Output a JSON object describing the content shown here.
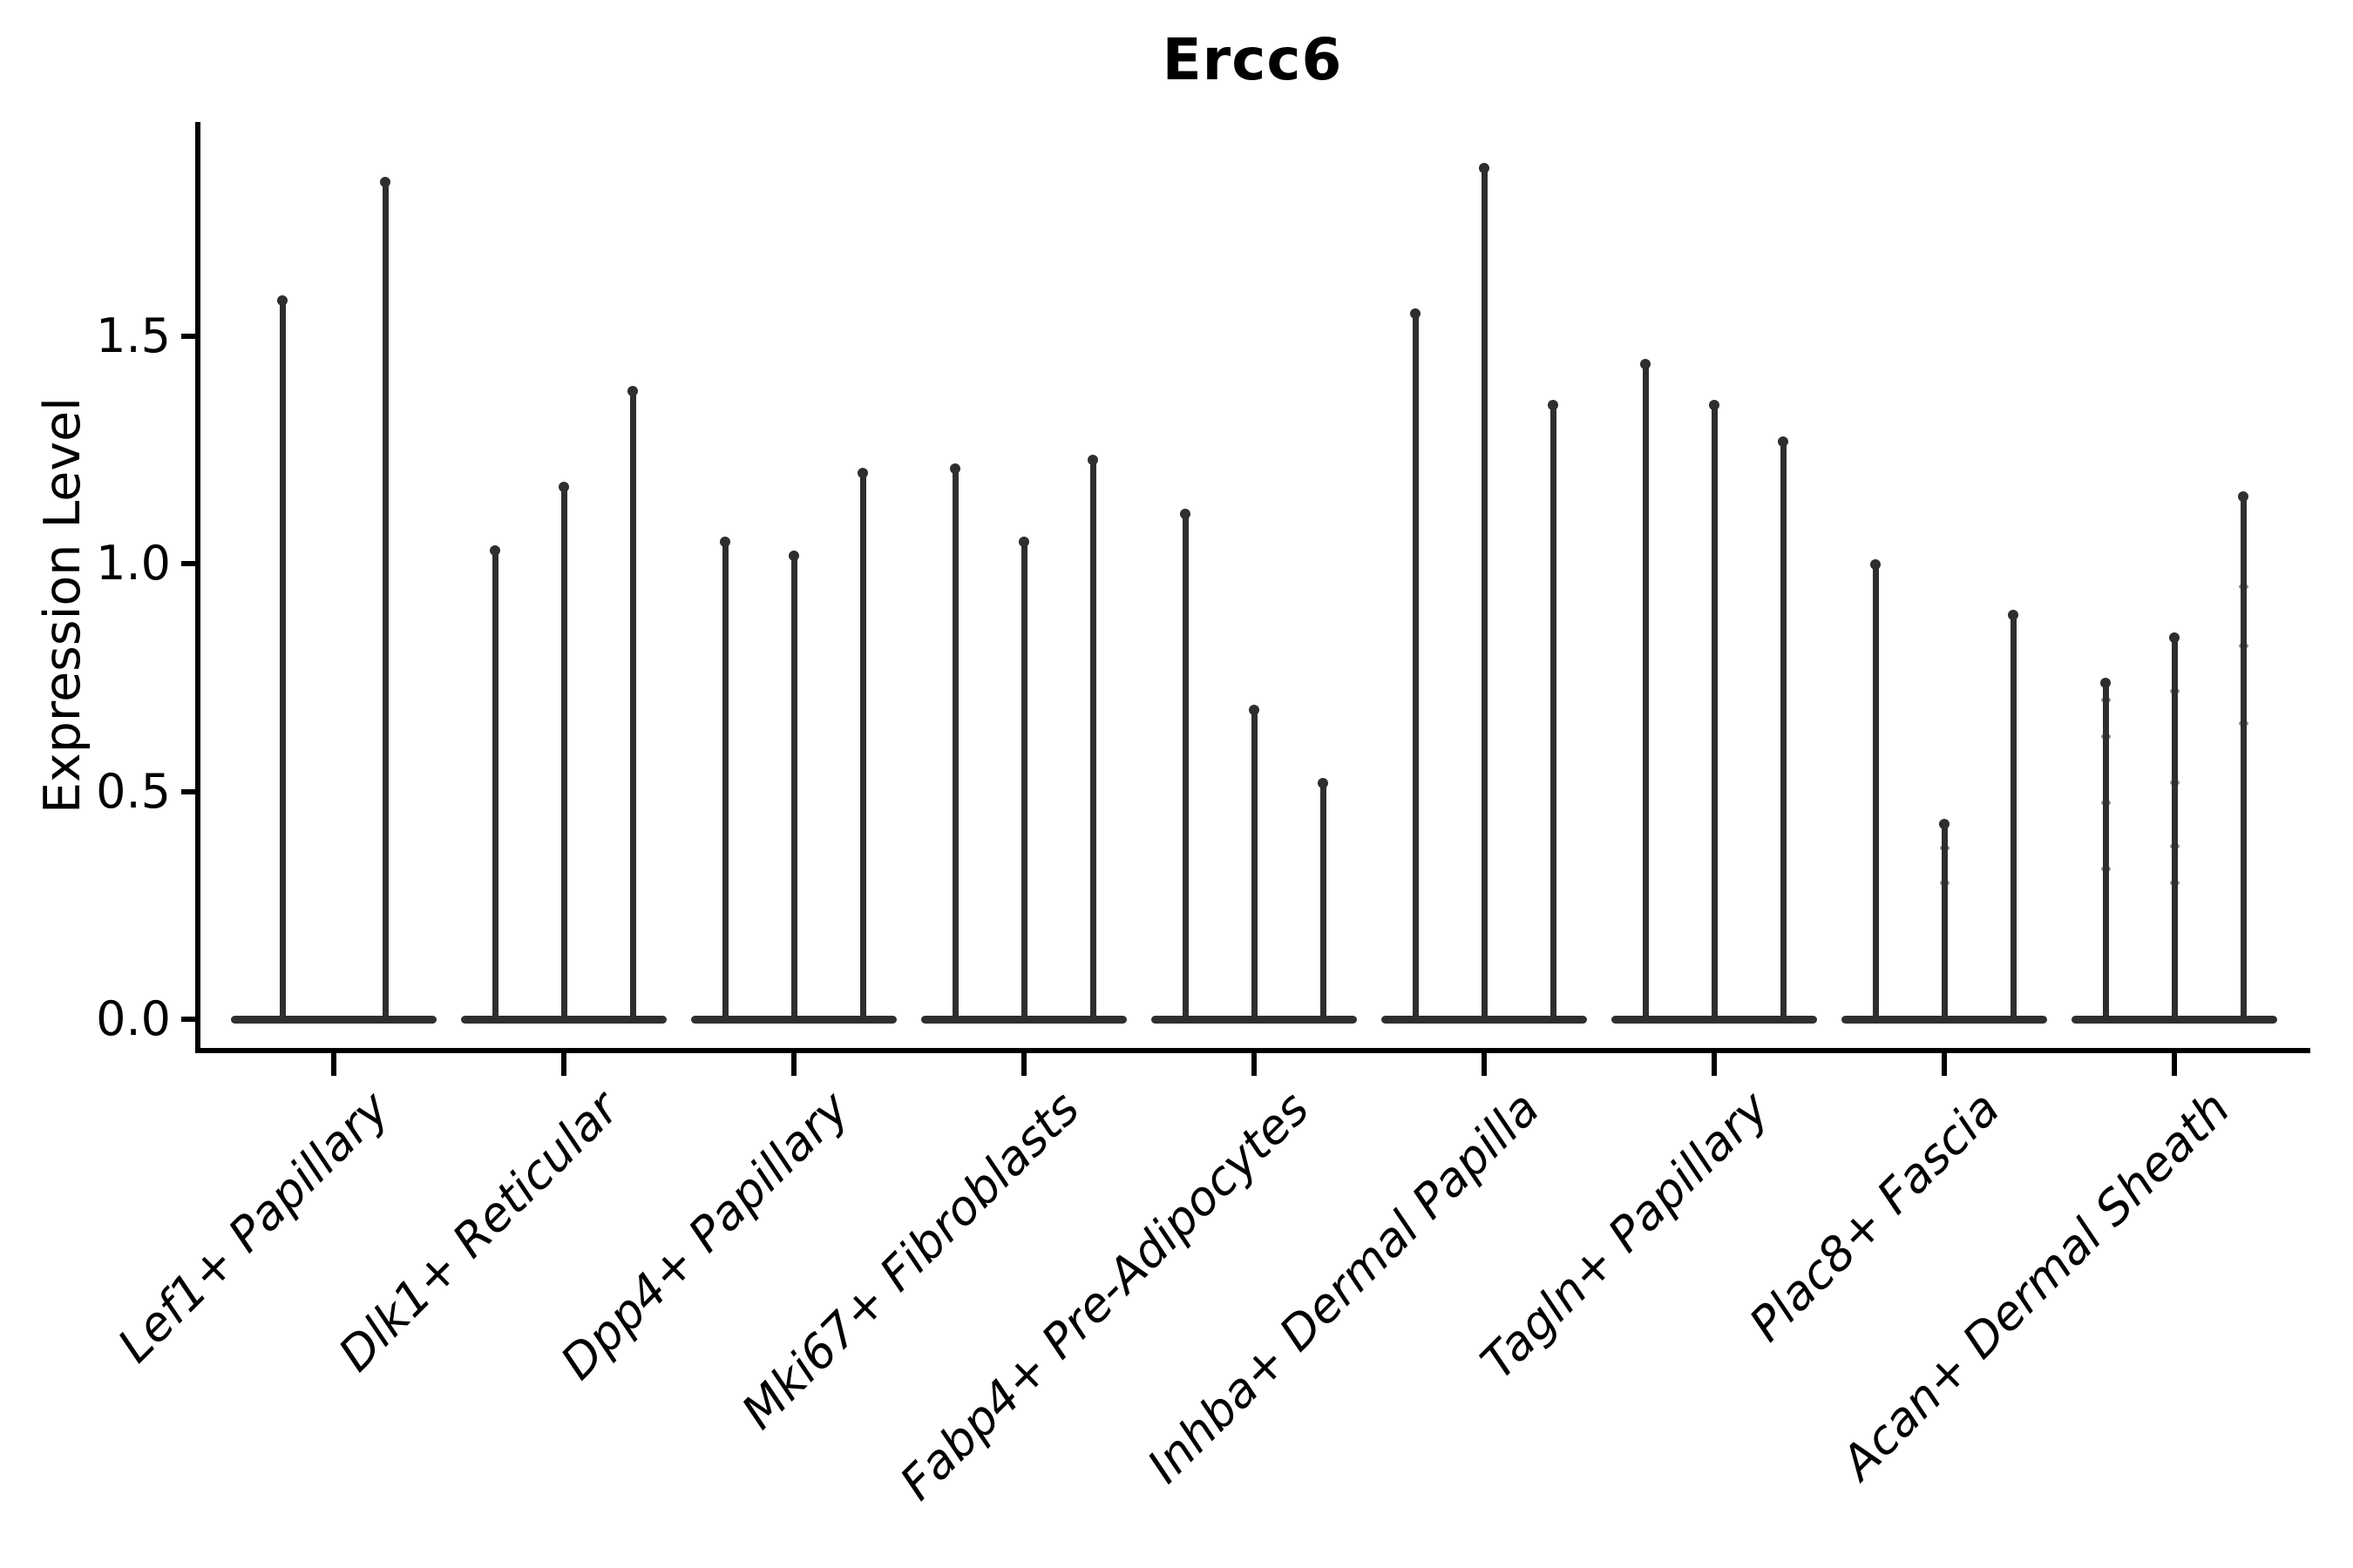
{
  "title": "Ercc6",
  "y_axis": {
    "label": "Expression Level",
    "ticks": [
      "0.0",
      "0.5",
      "1.0",
      "1.5"
    ]
  },
  "colors": {
    "violin": "#2e2e2e",
    "axis": "#000000",
    "text": "#000000",
    "background": "#ffffff"
  },
  "chart_data": {
    "type": "violin",
    "title": "Ercc6",
    "xlabel": "",
    "ylabel": "Expression Level",
    "ylim": [
      -0.075,
      1.97
    ],
    "yticks": [
      0.0,
      0.5,
      1.0,
      1.5
    ],
    "ytick_labels": [
      "0.0",
      "0.5",
      "1.0",
      "1.5"
    ],
    "grid": false,
    "legend": null,
    "style_note": "zero-inflated violins: wide flat base at 0 with a thin density spike rising to the maximum value",
    "categories": [
      "Lef1+ Papillary",
      "Dlk1+ Reticular",
      "Dpp4+ Papillary",
      "Mki67+ Fibroblasts",
      "Fabp4+ Pre-Adipocytes",
      "Inhba+ Dermal Papilla",
      "Tagln+ Papillary",
      "Plac8+ Fascia",
      "Acan+ Dermal Sheath"
    ],
    "groups": [
      {
        "label": "Lef1+ Papillary",
        "violins": [
          {
            "max": 1.58,
            "dots": []
          },
          {
            "max": 1.84,
            "dots": []
          }
        ]
      },
      {
        "label": "Dlk1+ Reticular",
        "violins": [
          {
            "max": 1.03,
            "dots": []
          },
          {
            "max": 1.17,
            "dots": []
          },
          {
            "max": 1.38,
            "dots": []
          }
        ]
      },
      {
        "label": "Dpp4+ Papillary",
        "violins": [
          {
            "max": 1.05,
            "dots": []
          },
          {
            "max": 1.02,
            "dots": []
          },
          {
            "max": 1.2,
            "dots": []
          }
        ]
      },
      {
        "label": "Mki67+ Fibroblasts",
        "violins": [
          {
            "max": 1.21,
            "dots": []
          },
          {
            "max": 1.05,
            "dots": []
          },
          {
            "max": 1.23,
            "dots": []
          }
        ]
      },
      {
        "label": "Fabp4+ Pre-Adipocytes",
        "violins": [
          {
            "max": 1.11,
            "dots": []
          },
          {
            "max": 0.68,
            "dots": []
          },
          {
            "max": 0.52,
            "dots": []
          }
        ]
      },
      {
        "label": "Inhba+ Dermal Papilla",
        "violins": [
          {
            "max": 1.55,
            "dots": []
          },
          {
            "max": 1.87,
            "dots": []
          },
          {
            "max": 1.35,
            "dots": []
          }
        ]
      },
      {
        "label": "Tagln+ Papillary",
        "violins": [
          {
            "max": 1.44,
            "dots": []
          },
          {
            "max": 1.35,
            "dots": []
          },
          {
            "max": 1.27,
            "dots": []
          }
        ]
      },
      {
        "label": "Plac8+ Fascia",
        "violins": [
          {
            "max": 1.0,
            "dots": []
          },
          {
            "max": 0.43,
            "dots": [
              0.3,
              0.375
            ]
          },
          {
            "max": 0.89,
            "dots": []
          }
        ]
      },
      {
        "label": "Acan+ Dermal Sheath",
        "violins": [
          {
            "max": 0.74,
            "dots": [
              0.33,
              0.475,
              0.62,
              0.7
            ]
          },
          {
            "max": 0.84,
            "dots": [
              0.3,
              0.38,
              0.52,
              0.72
            ]
          },
          {
            "max": 1.15,
            "dots": [
              0.65,
              0.82,
              0.95
            ]
          }
        ]
      }
    ]
  }
}
